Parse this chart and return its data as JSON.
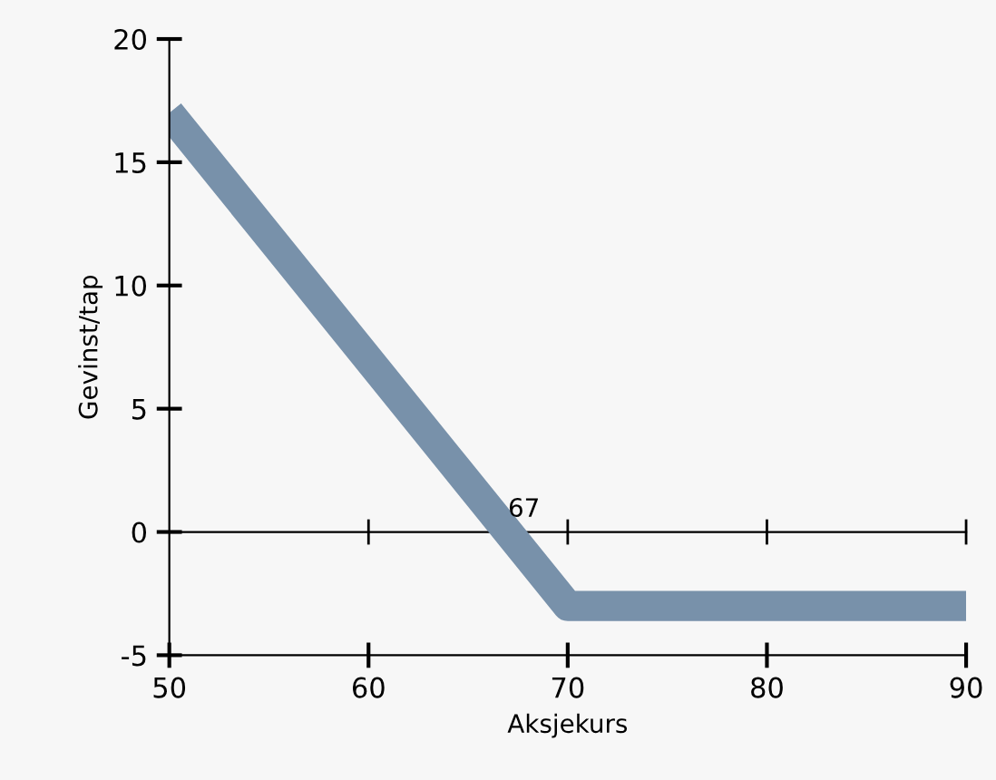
{
  "chart_data": {
    "type": "line",
    "xlabel": "Aksjekurs",
    "ylabel": "Gevinst/tap",
    "series": [
      {
        "color": "#7891aa",
        "x": [
          50,
          70,
          90
        ],
        "values": [
          17,
          -3,
          -3
        ]
      }
    ],
    "xlim": [
      50,
      90
    ],
    "ylim": [
      -5,
      20
    ],
    "xticks": [
      50,
      60,
      70,
      80,
      90
    ],
    "yticks": [
      -5,
      0,
      5,
      10,
      15,
      20
    ],
    "ref_lines": [
      {
        "axis": "y",
        "value": 0,
        "color": "#000000"
      }
    ],
    "annotations": [
      {
        "text": "67",
        "x": 67,
        "y": 0
      }
    ],
    "grid": false,
    "legend": false
  }
}
